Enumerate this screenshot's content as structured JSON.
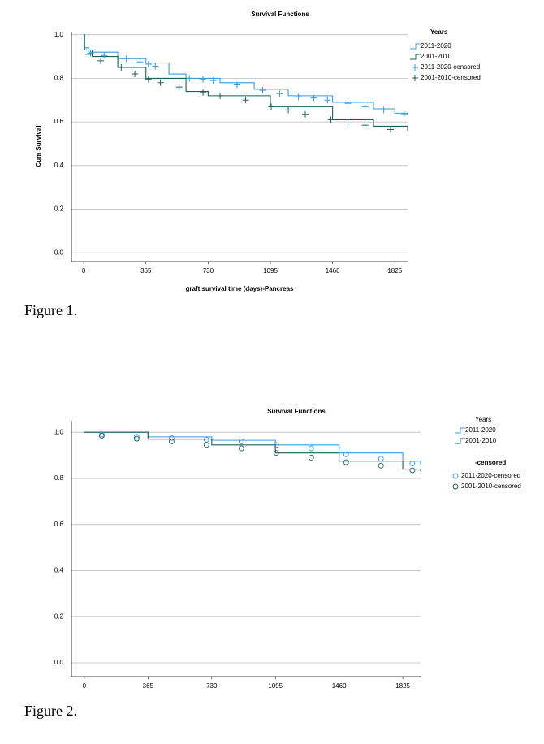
{
  "chart_data": [
    {
      "type": "line",
      "title": "Survival Functions",
      "xlabel": "graft survival time (days)-Pancreas",
      "ylabel": "Cum Survival",
      "legend_title": "Years",
      "xlim": [
        -72,
        1900
      ],
      "ylim": [
        -0.04,
        1.01
      ],
      "xticks": [
        0,
        365,
        730,
        1095,
        1460,
        1825
      ],
      "yticks": [
        {
          "value": 0,
          "label": "0.0"
        },
        0.2,
        0.4,
        0.6,
        0.8,
        {
          "value": 1,
          "label": "1.0"
        }
      ],
      "grid": true,
      "series": [
        {
          "name": "2011-2020",
          "color": "#3a9ad9",
          "x": [
            0,
            5,
            30,
            200,
            365,
            500,
            600,
            800,
            1000,
            1200,
            1460,
            1700,
            1825,
            1900
          ],
          "values": [
            1.0,
            0.94,
            0.92,
            0.89,
            0.87,
            0.82,
            0.8,
            0.78,
            0.75,
            0.72,
            0.69,
            0.66,
            0.64,
            0.635
          ]
        },
        {
          "name": "2001-2010",
          "color": "#1f5f5b",
          "x": [
            0,
            5,
            50,
            200,
            365,
            600,
            730,
            1095,
            1460,
            1700,
            1900
          ],
          "values": [
            1.0,
            0.93,
            0.9,
            0.85,
            0.8,
            0.74,
            0.72,
            0.67,
            0.61,
            0.58,
            0.56
          ]
        },
        {
          "name": "2011-2020-censored",
          "color": "#3a9ad9",
          "marker": "plus",
          "x": [
            40,
            120,
            250,
            330,
            380,
            420,
            620,
            700,
            760,
            900,
            1050,
            1150,
            1260,
            1350,
            1430,
            1550,
            1650,
            1760,
            1880
          ],
          "values": [
            0.915,
            0.905,
            0.89,
            0.875,
            0.865,
            0.855,
            0.8,
            0.795,
            0.79,
            0.77,
            0.745,
            0.73,
            0.715,
            0.71,
            0.7,
            0.685,
            0.67,
            0.655,
            0.637
          ]
        },
        {
          "name": "2001-2010-censored",
          "color": "#1f5f5b",
          "marker": "plus",
          "x": [
            30,
            100,
            220,
            300,
            380,
            450,
            560,
            700,
            800,
            950,
            1100,
            1200,
            1300,
            1450,
            1550,
            1650,
            1800
          ],
          "values": [
            0.91,
            0.88,
            0.85,
            0.82,
            0.795,
            0.78,
            0.76,
            0.735,
            0.72,
            0.7,
            0.67,
            0.655,
            0.635,
            0.61,
            0.595,
            0.585,
            0.565
          ]
        }
      ]
    },
    {
      "type": "line",
      "title": "Survival Functions",
      "legend_title": "Years",
      "censored_legend_title": "-censored",
      "xlim": [
        -74,
        1927
      ],
      "ylim": [
        -0.06,
        1.05
      ],
      "xticks": [
        0,
        365,
        730,
        1095,
        1460,
        1825
      ],
      "yticks": [
        {
          "value": 0,
          "label": "0.0"
        },
        0.2,
        0.4,
        0.6,
        0.8,
        {
          "value": 1,
          "label": "1.0"
        }
      ],
      "grid": true,
      "series": [
        {
          "name": "2011-2020",
          "color": "#3a9ad9",
          "x": [
            0,
            365,
            730,
            1095,
            1460,
            1825,
            1927
          ],
          "values": [
            1.0,
            0.98,
            0.965,
            0.945,
            0.91,
            0.875,
            0.86
          ]
        },
        {
          "name": "2001-2010",
          "color": "#1f5f5b",
          "x": [
            0,
            365,
            730,
            1095,
            1460,
            1825,
            1927
          ],
          "values": [
            1.0,
            0.97,
            0.945,
            0.91,
            0.875,
            0.84,
            0.83
          ]
        },
        {
          "name": "2011-2020-censored",
          "color": "#3a9ad9",
          "marker": "circle",
          "x": [
            100,
            300,
            500,
            700,
            900,
            1100,
            1300,
            1500,
            1700,
            1880
          ],
          "values": [
            0.99,
            0.98,
            0.975,
            0.968,
            0.96,
            0.945,
            0.93,
            0.905,
            0.885,
            0.865
          ]
        },
        {
          "name": "2001-2010-censored",
          "color": "#1f5f5b",
          "marker": "circle",
          "x": [
            100,
            300,
            500,
            700,
            900,
            1100,
            1300,
            1500,
            1700,
            1880
          ],
          "values": [
            0.985,
            0.972,
            0.96,
            0.945,
            0.93,
            0.91,
            0.89,
            0.87,
            0.855,
            0.835
          ]
        }
      ]
    }
  ],
  "captions": [
    "Figure 1.",
    "Figure 2."
  ]
}
